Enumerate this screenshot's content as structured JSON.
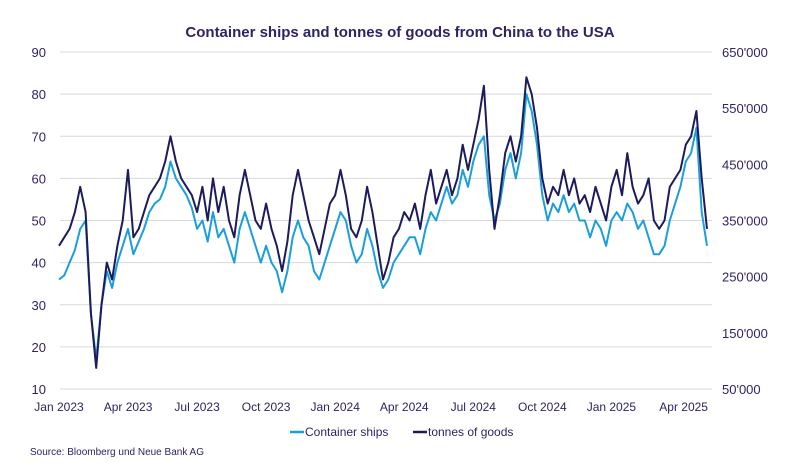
{
  "chart_data": {
    "type": "line",
    "title": "Container ships and tonnes of goods from China to the USA",
    "xlabel": "",
    "ylabel": "",
    "y2label": "",
    "x_tick_labels": [
      "Jan 2023",
      "Apr 2023",
      "Jul 2023",
      "Oct 2023",
      "Jan 2024",
      "Apr 2024",
      "Jul 2024",
      "Oct 2024",
      "Jan 2025",
      "Apr 2025"
    ],
    "x_range_weeks": [
      0,
      122
    ],
    "x_tick_weeks": [
      0,
      13,
      26,
      39,
      52,
      65,
      78,
      91,
      104,
      117.6
    ],
    "ylim": [
      10,
      90
    ],
    "y_ticks": [
      10,
      20,
      30,
      40,
      50,
      60,
      70,
      80,
      90
    ],
    "y_tick_labels": [
      "10",
      "20",
      "30",
      "40",
      "50",
      "60",
      "70",
      "80",
      "90"
    ],
    "y2lim": [
      50000,
      650000
    ],
    "y2_ticks": [
      50000,
      150000,
      250000,
      350000,
      450000,
      550000,
      650000
    ],
    "y2_tick_labels": [
      "50'000",
      "150'000",
      "250'000",
      "350'000",
      "450'000",
      "550'000",
      "650'000"
    ],
    "grid": true,
    "legend_position": "bottom-center",
    "source": "Source: Bloomberg und Neue Bank AG",
    "series": [
      {
        "name": "Container ships",
        "axis": "left",
        "color": "#1a9fdb",
        "values": [
          36,
          37,
          40,
          43,
          48,
          50,
          28,
          17,
          30,
          38,
          34,
          40,
          44,
          48,
          42,
          45,
          48,
          52,
          54,
          55,
          58,
          64,
          60,
          58,
          56,
          53,
          48,
          50,
          45,
          52,
          46,
          48,
          44,
          40,
          48,
          52,
          48,
          44,
          40,
          44,
          40,
          38,
          33,
          38,
          46,
          50,
          46,
          44,
          38,
          36,
          40,
          44,
          48,
          52,
          50,
          44,
          40,
          42,
          48,
          44,
          38,
          34,
          36,
          40,
          42,
          44,
          46,
          46,
          42,
          48,
          52,
          50,
          54,
          58,
          54,
          56,
          62,
          58,
          64,
          68,
          70,
          56,
          50,
          54,
          62,
          66,
          60,
          66,
          80,
          76,
          68,
          56,
          50,
          54,
          52,
          56,
          52,
          54,
          50,
          50,
          46,
          50,
          48,
          44,
          50,
          52,
          50,
          54,
          52,
          48,
          50,
          46,
          42,
          42,
          44,
          50,
          54,
          58,
          64,
          66,
          72,
          52,
          44
        ]
      },
      {
        "name": "tonnes of goods",
        "axis": "right",
        "color": "#1e1b5c",
        "values": [
          305000,
          320000,
          335000,
          365000,
          410000,
          365000,
          185000,
          87500,
          200000,
          275000,
          245000,
          305000,
          350000,
          440000,
          320000,
          335000,
          365000,
          395000,
          410000,
          425000,
          455000,
          500000,
          455000,
          425000,
          410000,
          395000,
          365000,
          410000,
          350000,
          425000,
          365000,
          410000,
          350000,
          320000,
          395000,
          440000,
          395000,
          350000,
          335000,
          380000,
          335000,
          305000,
          260000,
          312500,
          395000,
          440000,
          395000,
          350000,
          320000,
          290000,
          335000,
          380000,
          395000,
          440000,
          395000,
          335000,
          320000,
          350000,
          410000,
          365000,
          305000,
          245000,
          275000,
          320000,
          335000,
          365000,
          350000,
          380000,
          335000,
          395000,
          440000,
          380000,
          410000,
          440000,
          395000,
          425000,
          485000,
          440000,
          485000,
          530000,
          590000,
          440000,
          335000,
          395000,
          470000,
          500000,
          455000,
          500000,
          605000,
          575000,
          515000,
          425000,
          380000,
          410000,
          395000,
          440000,
          395000,
          425000,
          380000,
          395000,
          365000,
          410000,
          380000,
          350000,
          410000,
          440000,
          395000,
          470000,
          410000,
          380000,
          395000,
          425000,
          350000,
          335000,
          350000,
          410000,
          425000,
          440000,
          485000,
          500000,
          545000,
          425000,
          335000
        ]
      }
    ]
  }
}
